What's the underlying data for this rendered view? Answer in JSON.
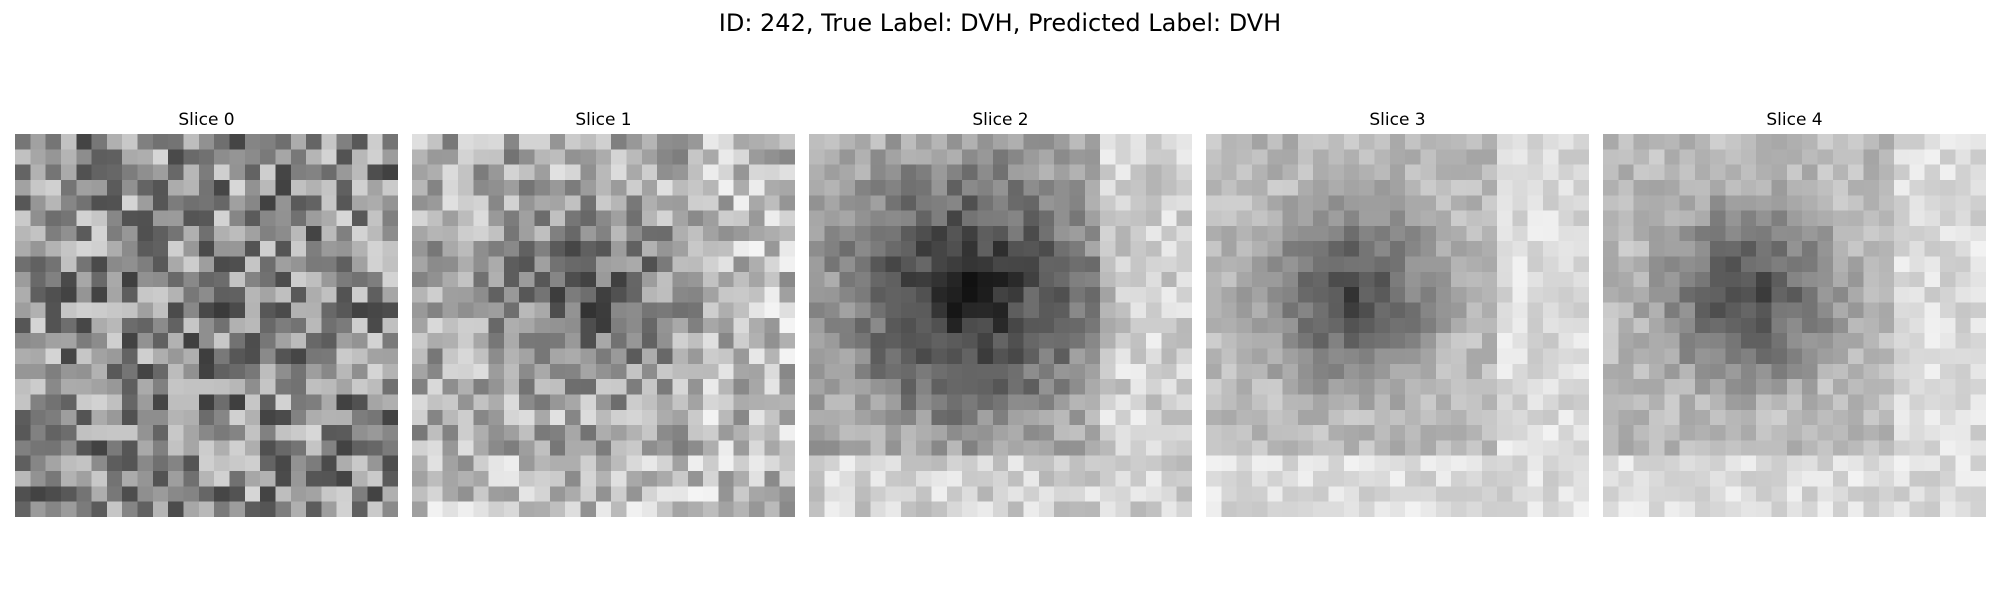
{
  "figure": {
    "title": "ID: 242, True Label: DVH, Predicted Label: DVH"
  },
  "slices": [
    {
      "label": "Slice 0"
    },
    {
      "label": "Slice 1"
    },
    {
      "label": "Slice 2"
    },
    {
      "label": "Slice 3"
    },
    {
      "label": "Slice 4"
    }
  ]
}
